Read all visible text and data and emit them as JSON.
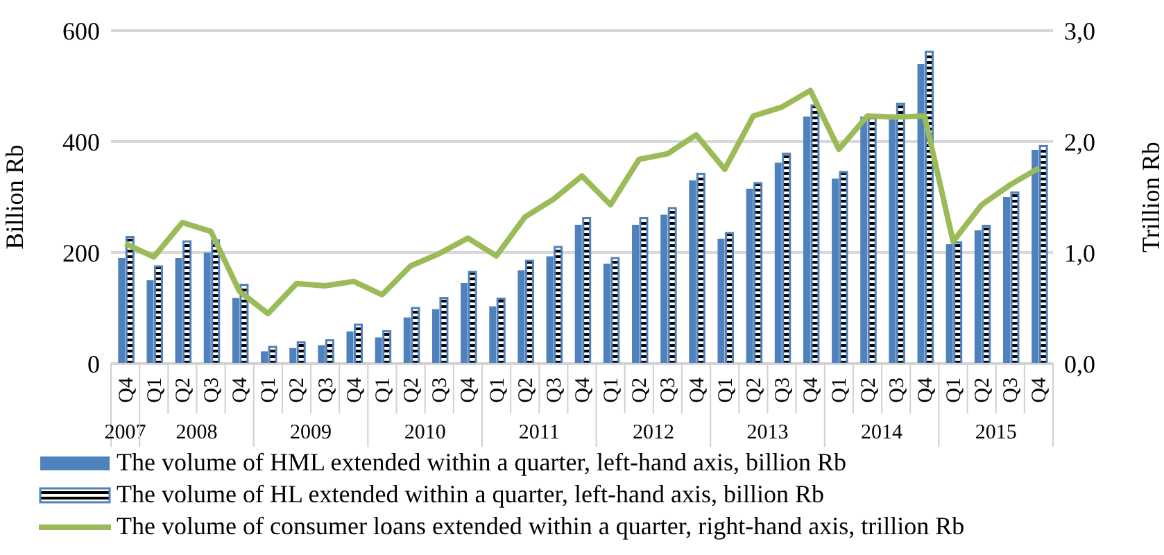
{
  "chart_data": {
    "type": "bar",
    "ylabel": "Billion Rb",
    "y2label": "Trillion Rb",
    "categories": [
      "Q4",
      "Q1",
      "Q2",
      "Q3",
      "Q4",
      "Q1",
      "Q2",
      "Q3",
      "Q4",
      "Q1",
      "Q2",
      "Q3",
      "Q4",
      "Q1",
      "Q2",
      "Q3",
      "Q4",
      "Q1",
      "Q2",
      "Q3",
      "Q4",
      "Q1",
      "Q2",
      "Q3",
      "Q4",
      "Q1",
      "Q2",
      "Q3",
      "Q4",
      "Q1",
      "Q2",
      "Q3",
      "Q4"
    ],
    "annotations": [
      "2007",
      "2008",
      "2009",
      "2010",
      "2011",
      "2012",
      "2013",
      "2014",
      "2015"
    ],
    "ylim": [
      0,
      600
    ],
    "yticks": [
      0,
      200,
      400,
      600
    ],
    "y2lim": [
      0,
      3
    ],
    "y2ticks": [
      {
        "value": 0,
        "label": "0,0"
      },
      {
        "value": 1,
        "label": "1,0"
      },
      {
        "value": 2,
        "label": "2,0"
      },
      {
        "value": 3,
        "label": "3,0"
      }
    ],
    "grid": "y",
    "legend": "bottom",
    "series": [
      {
        "name": "The volume of HML extended within a quarter, left-hand axis, billion Rb",
        "color": "#4f81bd",
        "values": [
          190,
          150,
          190,
          200,
          118,
          22,
          28,
          33,
          58,
          47,
          83,
          98,
          145,
          103,
          168,
          193,
          250,
          180,
          250,
          268,
          330,
          225,
          315,
          362,
          445,
          333,
          445,
          445,
          540,
          215,
          240,
          300,
          385
        ]
      },
      {
        "name": "The volume of HL extended within a quarter, left-hand axis, billion Rb",
        "color": "#4f81bd",
        "values": [
          228,
          175,
          220,
          222,
          142,
          30,
          38,
          42,
          70,
          58,
          100,
          118,
          165,
          117,
          185,
          210,
          262,
          190,
          262,
          280,
          342,
          235,
          325,
          378,
          465,
          345,
          445,
          468,
          562,
          218,
          248,
          308,
          392
        ]
      },
      {
        "name": "The volume of consumer loans extended within a quarter, right-hand axis, trillion Rb",
        "type": "line",
        "axis": "y2",
        "color": "#9bbb59",
        "values": [
          1.08,
          0.96,
          1.27,
          1.19,
          0.65,
          0.45,
          0.72,
          0.7,
          0.74,
          0.62,
          0.88,
          0.99,
          1.13,
          0.97,
          1.32,
          1.48,
          1.69,
          1.43,
          1.84,
          1.89,
          2.06,
          1.75,
          2.23,
          2.31,
          2.46,
          1.93,
          2.23,
          2.22,
          2.23,
          1.1,
          1.43,
          1.61,
          1.76
        ]
      }
    ]
  }
}
